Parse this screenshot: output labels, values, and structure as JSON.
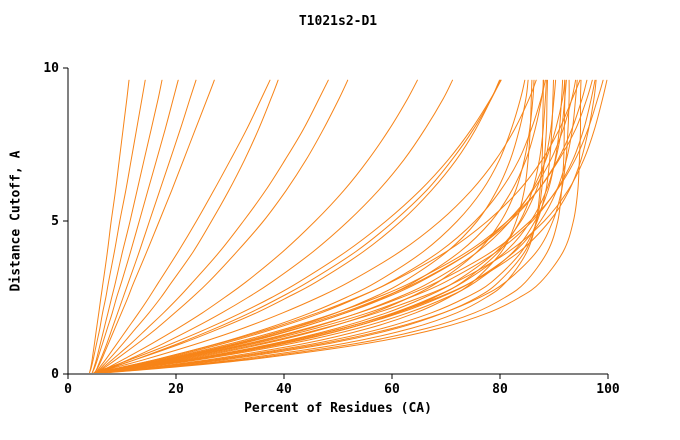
{
  "chart_data": {
    "type": "line",
    "title": "T1021s2-D1",
    "xlabel": "Percent of Residues (CA)",
    "ylabel": "Distance Cutoff, A",
    "xlim": [
      0,
      100
    ],
    "ylim": [
      0,
      10
    ],
    "x_ticks": [
      0,
      20,
      40,
      60,
      80,
      100
    ],
    "y_ticks": [
      0,
      5,
      10
    ],
    "grid": false,
    "legend": "none",
    "line_color": "#f78418",
    "axis_color": "#000000",
    "cutoffs": [
      0.05,
      0.2,
      0.5,
      1,
      1.5,
      2,
      2.5,
      3,
      4,
      5,
      6,
      7,
      8,
      9,
      9.6
    ],
    "series": [
      [
        4,
        4.2,
        4.5,
        4.9,
        5.3,
        5.7,
        6.1,
        6.5,
        7.3,
        8,
        8.8,
        9.5,
        10.2,
        10.9,
        11.3
      ],
      [
        4,
        4.3,
        4.7,
        5.3,
        5.9,
        6.4,
        7,
        7.5,
        8.6,
        9.6,
        10.7,
        11.7,
        12.7,
        13.7,
        14.3
      ],
      [
        4.5,
        4.8,
        5.3,
        6,
        6.7,
        7.4,
        8.1,
        8.8,
        10.1,
        11.5,
        12.8,
        14.1,
        15.4,
        16.7,
        17.4
      ],
      [
        4.5,
        4.9,
        5.5,
        6.4,
        7.3,
        8.2,
        9,
        9.9,
        11.6,
        13.2,
        14.8,
        16.4,
        18,
        19.5,
        20.4
      ],
      [
        5,
        5.4,
        6.1,
        7.2,
        8.2,
        9.2,
        10.2,
        11.2,
        13.2,
        15.1,
        17,
        18.9,
        20.8,
        22.6,
        23.7
      ],
      [
        5,
        5.5,
        6.3,
        7.5,
        8.7,
        9.9,
        11.1,
        12.2,
        14.6,
        16.9,
        19.2,
        21.4,
        23.6,
        25.8,
        27.1
      ],
      [
        5.2,
        5.8,
        7.1,
        9.1,
        11.1,
        13.1,
        15,
        16.8,
        20.4,
        23.8,
        27,
        30.1,
        33.1,
        35.8,
        37.4
      ],
      [
        5.3,
        6.1,
        7.7,
        10.2,
        12.6,
        15,
        17.2,
        19.2,
        23.2,
        26.6,
        29.8,
        32.7,
        35.3,
        37.6,
        38.9
      ],
      [
        5.4,
        6.4,
        8.4,
        11.7,
        14.7,
        17.7,
        20.5,
        23.1,
        28.1,
        32.5,
        36.6,
        40.2,
        43.6,
        46.5,
        48.2
      ],
      [
        5.4,
        6.7,
        9.1,
        12.9,
        16.5,
        19.8,
        23,
        26,
        31.3,
        36.2,
        40.4,
        44.1,
        47.3,
        50.2,
        51.8
      ],
      [
        5.6,
        7.3,
        10.5,
        15.6,
        20.4,
        24.9,
        29,
        32.9,
        39.8,
        45.8,
        51.1,
        55.6,
        59.5,
        62.9,
        64.7
      ],
      [
        5.7,
        7.7,
        11.6,
        17.7,
        23.3,
        28.5,
        33.3,
        37.7,
        45.4,
        51.9,
        57.5,
        62.2,
        66.1,
        69.5,
        71.2
      ],
      [
        5.4,
        8,
        12.9,
        20.5,
        27.4,
        33.7,
        39.3,
        44.4,
        53.3,
        60.4,
        66.4,
        71.1,
        75.1,
        78.4,
        80.1
      ],
      [
        5.1,
        8.4,
        14.7,
        24.1,
        32.5,
        39.8,
        46.3,
        52,
        61.5,
        68.9,
        74.7,
        79.2,
        82.7,
        85.4,
        86.7
      ],
      [
        5.4,
        9.4,
        16.9,
        27.8,
        37,
        44.9,
        51.5,
        57.1,
        65.8,
        72.1,
        76.7,
        79.9,
        82.1,
        83.8,
        84.6
      ],
      [
        5.5,
        9.7,
        17.6,
        28.9,
        38.6,
        46.9,
        53.7,
        59.6,
        68.8,
        75.4,
        80.1,
        83.5,
        85.8,
        87.6,
        88.4
      ],
      [
        5.7,
        10.6,
        19.6,
        32.4,
        42.8,
        51.4,
        58.4,
        64.1,
        72.6,
        78.4,
        82.2,
        84.8,
        86.5,
        87.7,
        88.1
      ],
      [
        6.3,
        11.4,
        20.7,
        34,
        44.9,
        53.8,
        61.1,
        67.1,
        75.9,
        81.9,
        85.9,
        88.5,
        90.3,
        91.6,
        92
      ],
      [
        6.1,
        11.9,
        22.3,
        36.6,
        47.8,
        56.5,
        63.2,
        68.5,
        75.8,
        80.2,
        82.9,
        84.5,
        85.5,
        86.1,
        86.3
      ],
      [
        6.1,
        12.3,
        23.2,
        38.2,
        49.9,
        59,
        66,
        71.6,
        79.3,
        83.9,
        86.7,
        88.4,
        89.4,
        90,
        90.3
      ],
      [
        6.2,
        12.6,
        24.1,
        39.8,
        52,
        61.5,
        68.9,
        74.7,
        82.7,
        87.5,
        90.5,
        92.3,
        93.4,
        94,
        94.3
      ],
      [
        6.3,
        12.9,
        24.6,
        40.3,
        52.1,
        61,
        67.8,
        73,
        79.8,
        83.7,
        86,
        87.3,
        88,
        88.4,
        88.6
      ],
      [
        6.7,
        14.3,
        27.2,
        43.9,
        55.8,
        64.4,
        70.5,
        74.9,
        80.3,
        83,
        84.5,
        85.2,
        85.6,
        85.8,
        85.9
      ],
      [
        6.8,
        14.8,
        28.3,
        45.9,
        58.4,
        67.3,
        73.7,
        78.4,
        84,
        86.9,
        88.5,
        89.2,
        89.6,
        89.8,
        89.9
      ],
      [
        6.9,
        15.1,
        29.2,
        47.3,
        60.2,
        69.5,
        76.2,
        81,
        86.8,
        89.8,
        91.4,
        92.2,
        92.6,
        92.8,
        92.8
      ],
      [
        7,
        16.5,
        32.3,
        51.2,
        63.7,
        72,
        77.4,
        81.1,
        85,
        86.7,
        87.4,
        87.8,
        87.9,
        88,
        88
      ],
      [
        7.1,
        17.1,
        33.7,
        53.5,
        66.6,
        75.3,
        80.9,
        84.7,
        88.8,
        90.7,
        91.4,
        91.8,
        91.9,
        92,
        92
      ],
      [
        7.7,
        18,
        35,
        55.4,
        68.9,
        77.8,
        83.6,
        87.5,
        91.7,
        93.6,
        94.4,
        94.7,
        94.9,
        94.9,
        95
      ],
      [
        6.1,
        12.2,
        23.3,
        38.7,
        50.9,
        60.7,
        68.5,
        74.7,
        83.6,
        89.2,
        92.8,
        95,
        96.4,
        97.4,
        97.8
      ],
      [
        5.6,
        10.2,
        18.8,
        31.2,
        41.7,
        50.8,
        58.2,
        64.7,
        74.7,
        81.9,
        87,
        90.7,
        93.3,
        95.2,
        96.1
      ],
      [
        5.4,
        9.4,
        16.9,
        28.1,
        37.8,
        46.2,
        53.5,
        59.8,
        70.1,
        77.7,
        83.5,
        87.8,
        91,
        93.4,
        94.8
      ],
      [
        5.6,
        10.4,
        19.2,
        31.9,
        42.6,
        51.5,
        58.9,
        65.1,
        74.7,
        81.4,
        86.1,
        89.4,
        91.7,
        93.3,
        94
      ],
      [
        5.6,
        10.4,
        19,
        31.4,
        41.4,
        49.7,
        56.5,
        62,
        70.2,
        75.8,
        79.4,
        81.9,
        83.6,
        84.8,
        85.2
      ],
      [
        6.2,
        12.5,
        23.7,
        39,
        51,
        60.3,
        67.5,
        73.2,
        81,
        85.7,
        88.6,
        90.3,
        91.4,
        92,
        92.3
      ],
      [
        6.4,
        13.2,
        25.4,
        41.5,
        53.8,
        63,
        70.1,
        75.4,
        82.5,
        86.5,
        88.9,
        90.2,
        91,
        91.4,
        91.6
      ],
      [
        7.1,
        15.7,
        30.4,
        48.5,
        61,
        69.6,
        75.7,
        79.7,
        84.6,
        86.8,
        87.7,
        88.2,
        88.6,
        88.7,
        88.8
      ],
      [
        4.9,
        7.7,
        13,
        21.1,
        28.3,
        34.9,
        40.6,
        45.9,
        54.7,
        61.7,
        67.3,
        71.9,
        75.5,
        78.4,
        79.9
      ],
      [
        4.8,
        7.3,
        12,
        19.3,
        26,
        32.1,
        37.7,
        42.7,
        51.5,
        58.9,
        65.2,
        70.4,
        74.7,
        78.3,
        80.2
      ],
      [
        5.8,
        11.1,
        20.8,
        34.7,
        46,
        55.6,
        63.3,
        69.8,
        79.4,
        86,
        90.4,
        93.5,
        95.5,
        96.9,
        97.6
      ],
      [
        5.5,
        9.9,
        18.2,
        30.3,
        40.7,
        49.6,
        57.2,
        63.7,
        74,
        81.4,
        87,
        90.9,
        94,
        96.1,
        97.1
      ],
      [
        5.9,
        11.5,
        21.5,
        35.8,
        47.4,
        57.2,
        65.2,
        71.8,
        81.6,
        88.2,
        92.6,
        95.5,
        97.5,
        99,
        99.8
      ],
      [
        5.7,
        10.8,
        20,
        33.4,
        44.4,
        53.9,
        61.7,
        68.3,
        78.5,
        85.6,
        90.5,
        93.9,
        96.3,
        98.1,
        99.1
      ]
    ]
  }
}
